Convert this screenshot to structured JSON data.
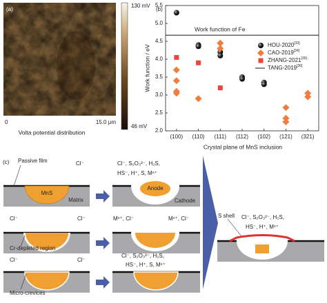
{
  "panel_a": {
    "label": "(a)",
    "scale_max": "130 mV",
    "scale_min": "46 mV",
    "x_start": "0",
    "x_end": "15.0 μm",
    "caption": "Volta potential distribution"
  },
  "chart_data": {
    "type": "scatter",
    "panel_label": "(b)",
    "x_label": "Crystal plane of MnS inclusion",
    "y_label": "Work function / eV",
    "categories": [
      "(100)",
      "(110)",
      "(111)",
      "(112)",
      "(102)",
      "(121)",
      "(321)"
    ],
    "ylim": [
      2.0,
      5.5
    ],
    "yticks": [
      {
        "value": 2,
        "label": "2.0"
      },
      2.5,
      {
        "value": 3,
        "label": "3.0"
      },
      3.5,
      {
        "value": 4,
        "label": "4.0"
      },
      4.5,
      {
        "value": 5,
        "label": "5.0"
      },
      5.5
    ],
    "annotation": "Work function of Fe",
    "series": [
      {
        "name": "HOU-2020",
        "ref": "[33]",
        "color": "#111111",
        "marker": "circle",
        "x": [
          "(100)",
          "(110)",
          "(110)",
          "(111)",
          "(111)",
          "(112)",
          "(112)",
          "(102)",
          "(102)"
        ],
        "values": [
          5.3,
          4.4,
          4.36,
          4.2,
          4.1,
          3.5,
          3.45,
          3.35,
          3.3
        ]
      },
      {
        "name": "CAO-2019",
        "ref": "[34]",
        "color": "#f07c3e",
        "marker": "diamond",
        "x": [
          "(100)",
          "(100)",
          "(100)",
          "(100)",
          "(110)",
          "(111)",
          "(111)",
          "(121)",
          "(121)",
          "(121)",
          "(321)",
          "(321)"
        ],
        "values": [
          3.7,
          3.4,
          3.1,
          3.05,
          2.9,
          4.45,
          4.3,
          2.65,
          2.35,
          2.25,
          3.05,
          2.95
        ]
      },
      {
        "name": "ZHANG-2021",
        "ref": "[35]",
        "color": "#e8473b",
        "marker": "square",
        "x": [
          "(100)",
          "(110)",
          "(111)"
        ],
        "values": [
          4.05,
          3.9,
          3.2
        ]
      },
      {
        "name": "TANG-2019",
        "ref": "[36]",
        "color": "#111111",
        "marker": "line",
        "value": 4.67
      }
    ]
  },
  "panel_c": {
    "label": "(c)",
    "passive_film": "Passive film",
    "mns": "MnS",
    "matrix": "Matrix",
    "anode": "Anode",
    "cathode": "Cathode",
    "cr_depleted": "Cr-depleted region",
    "micro_crevices": "Micro-crevices",
    "s_shell": "S shell",
    "ions": [
      "Cl⁻",
      "Cl⁻, S₂O₃²⁻, H₂S,",
      "HS⁻, H⁺, S, Mⁿ⁺",
      "Cl⁻",
      "Cl⁻",
      "Mⁿ⁺, Cl⁻",
      "Mⁿ⁺, Cl⁻",
      "Cl⁻",
      "Cl⁻",
      "Cl⁻, S₂O₃²⁻, H₂S,",
      "HS⁻, H⁺, S, Mⁿ⁺",
      "Cl⁻, S₂O₃²⁻, H₂S,",
      "HS⁻, H⁺, Mⁿ⁺"
    ]
  }
}
